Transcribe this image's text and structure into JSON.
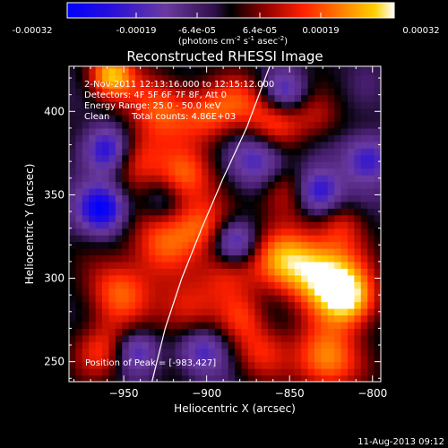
{
  "colorbar": {
    "ticks": [
      "-0.00032",
      "-0.00019",
      "-6.4e-05",
      "6.4e-05",
      "0.00019",
      "0.00032"
    ],
    "unit_main": "(photons cm",
    "unit_exp1": "-2",
    "unit_mid": " s",
    "unit_exp2": "-1",
    "unit_tail": " asec",
    "unit_exp3": "-2",
    "unit_close": ")"
  },
  "chart_data": {
    "type": "heatmap",
    "title": "Reconstructed RHESSI Image",
    "xlabel": "Heliocentric X (arcsec)",
    "ylabel": "Heliocentric Y (arcsec)",
    "xlim": [
      -983,
      -795
    ],
    "ylim": [
      238,
      427
    ],
    "x_ticks": [
      -950,
      -900,
      -850,
      -800
    ],
    "y_ticks": [
      250,
      300,
      350,
      400
    ],
    "color_range": [
      -0.00032,
      0.00032
    ],
    "colorscale": [
      "#0000ff",
      "#3a1fc0",
      "#6a3a9a",
      "#5e2a88",
      "#000000",
      "#a00000",
      "#ff2000",
      "#ff8000",
      "#ffd000",
      "#ffffff"
    ],
    "annotations": {
      "time": "2-Nov-2011 12:13:16.000 to 12:15:12.000",
      "detectors": "Detectors: 4F 5F 6F 7F 8F, Att 0",
      "energy": "Energy Range: 25.0 - 50.0 keV",
      "method": "Clean",
      "counts": "Total counts: 4.86E+03",
      "peak": "Position of Peak = [-983,427]"
    },
    "limb_curve": [
      [
        -933,
        238
      ],
      [
        -925,
        270
      ],
      [
        -915,
        300
      ],
      [
        -903,
        330
      ],
      [
        -890,
        360
      ],
      [
        -876,
        390
      ],
      [
        -862,
        427
      ]
    ]
  },
  "footer": {
    "date": "11-Aug-2013 09:12"
  }
}
